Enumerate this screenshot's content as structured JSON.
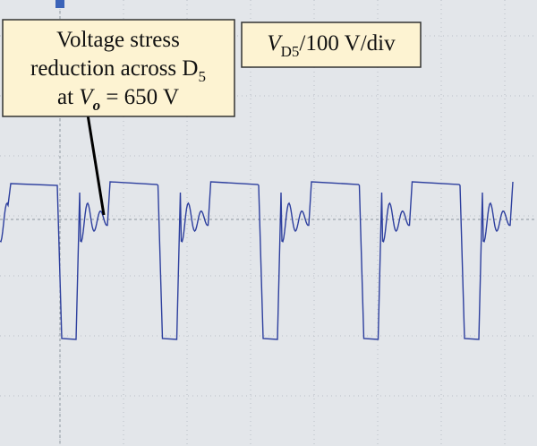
{
  "annotation": {
    "line1": "Voltage stress",
    "line2": {
      "text": "reduction across D",
      "sub": "5"
    },
    "line3": {
      "prefix": "at ",
      "var": "V",
      "sub": "o",
      "suffix": " = 650 V"
    }
  },
  "scale_label": {
    "var": "V",
    "sub": "D5",
    "suffix": "/100 V/div"
  }
}
